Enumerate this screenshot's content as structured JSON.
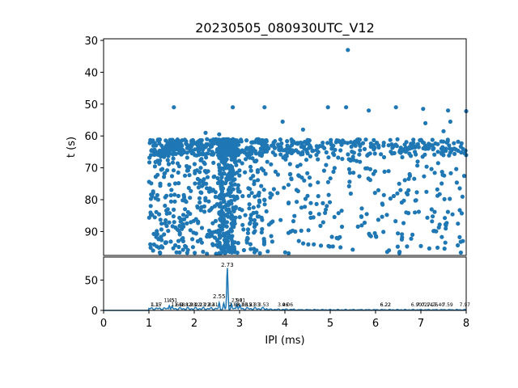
{
  "chart_data": [
    {
      "type": "scatter",
      "title": "20230505_080930UTC_V12",
      "xlabel": "",
      "ylabel": "t (s)",
      "xlim": [
        0,
        8
      ],
      "ylim": [
        97.5,
        29.5
      ],
      "y_inverted": true,
      "yticks": [
        "30",
        "40",
        "50",
        "60",
        "70",
        "80",
        "90"
      ],
      "grid": false,
      "marker_color": "#1f77b4",
      "point_count_estimate": 1500,
      "x_extent": [
        1.0,
        8.0
      ],
      "dense_band_t": [
        61,
        97
      ],
      "sparse_points": [
        {
          "x": 5.39,
          "y": 33.0
        },
        {
          "x": 1.55,
          "y": 51.0
        },
        {
          "x": 2.85,
          "y": 51.0
        },
        {
          "x": 3.55,
          "y": 51.0
        },
        {
          "x": 4.95,
          "y": 51.0
        },
        {
          "x": 5.35,
          "y": 51.0
        },
        {
          "x": 5.85,
          "y": 52.0
        },
        {
          "x": 6.45,
          "y": 51.0
        },
        {
          "x": 7.05,
          "y": 51.5
        },
        {
          "x": 7.6,
          "y": 52.0
        },
        {
          "x": 8.0,
          "y": 52.2
        },
        {
          "x": 3.95,
          "y": 55.5
        },
        {
          "x": 7.1,
          "y": 56.0
        },
        {
          "x": 7.65,
          "y": 55.5
        },
        {
          "x": 4.4,
          "y": 58.0
        },
        {
          "x": 2.25,
          "y": 59.0
        },
        {
          "x": 2.55,
          "y": 59.5
        },
        {
          "x": 7.5,
          "y": 58.5
        }
      ]
    },
    {
      "type": "line",
      "xlabel": "IPI (ms)",
      "ylabel": "",
      "xlim": [
        0,
        8
      ],
      "ylim": [
        0,
        88
      ],
      "xticks": [
        "0",
        "1",
        "2",
        "3",
        "4",
        "5",
        "6",
        "7",
        "8"
      ],
      "yticks": [
        "0",
        "50"
      ],
      "line_color": "#1f77b4",
      "peak_labels": [
        {
          "x": 2.73,
          "y": 72,
          "text": "2.73",
          "size": 7
        },
        {
          "x": 2.55,
          "y": 20,
          "text": "2.55",
          "size": 7
        },
        {
          "x": 1.15,
          "y": 7,
          "text": "1.15",
          "size": 6
        },
        {
          "x": 1.17,
          "y": 7,
          "text": "1.17",
          "size": 6
        },
        {
          "x": 1.45,
          "y": 14,
          "text": "1.45",
          "size": 6
        },
        {
          "x": 1.51,
          "y": 14,
          "text": "1.51",
          "size": 6
        },
        {
          "x": 1.61,
          "y": 7,
          "text": "1.61",
          "size": 6
        },
        {
          "x": 1.68,
          "y": 7,
          "text": "1.68",
          "size": 6
        },
        {
          "x": 1.82,
          "y": 7,
          "text": "1.82",
          "size": 6
        },
        {
          "x": 1.93,
          "y": 7,
          "text": "1.93",
          "size": 6
        },
        {
          "x": 2.02,
          "y": 7,
          "text": "2.02",
          "size": 6
        },
        {
          "x": 2.13,
          "y": 7,
          "text": "2.13",
          "size": 6
        },
        {
          "x": 2.23,
          "y": 7,
          "text": "2.23",
          "size": 6
        },
        {
          "x": 2.33,
          "y": 7,
          "text": "2.33",
          "size": 6
        },
        {
          "x": 2.41,
          "y": 7,
          "text": "2.41",
          "size": 6
        },
        {
          "x": 2.94,
          "y": 14,
          "text": "2.94",
          "size": 6
        },
        {
          "x": 3.01,
          "y": 14,
          "text": "3.01",
          "size": 6
        },
        {
          "x": 2.88,
          "y": 7,
          "text": "2.88",
          "size": 6
        },
        {
          "x": 3.06,
          "y": 7,
          "text": "3.06",
          "size": 6
        },
        {
          "x": 3.15,
          "y": 7,
          "text": "3.15",
          "size": 6
        },
        {
          "x": 3.23,
          "y": 7,
          "text": "3.23",
          "size": 6
        },
        {
          "x": 3.33,
          "y": 7,
          "text": "3.33",
          "size": 6
        },
        {
          "x": 3.53,
          "y": 7,
          "text": "3.53",
          "size": 6
        },
        {
          "x": 3.96,
          "y": 7,
          "text": "3.96",
          "size": 6
        },
        {
          "x": 4.06,
          "y": 7,
          "text": "4.06",
          "size": 6
        },
        {
          "x": 6.22,
          "y": 7,
          "text": "6.22",
          "size": 6
        },
        {
          "x": 6.22,
          "y": 7,
          "text": "6.22",
          "size": 6
        },
        {
          "x": 6.9,
          "y": 7,
          "text": "6.90",
          "size": 6
        },
        {
          "x": 7.02,
          "y": 7,
          "text": "7.02",
          "size": 6
        },
        {
          "x": 7.14,
          "y": 7,
          "text": "7.14",
          "size": 6
        },
        {
          "x": 7.26,
          "y": 7,
          "text": "7.26",
          "size": 6
        },
        {
          "x": 7.4,
          "y": 7,
          "text": "7.40",
          "size": 6
        },
        {
          "x": 7.59,
          "y": 7,
          "text": "7.59",
          "size": 6
        },
        {
          "x": 7.97,
          "y": 7,
          "text": "7.97",
          "size": 6
        }
      ],
      "peaks": [
        {
          "x": 2.73,
          "y": 70
        },
        {
          "x": 2.55,
          "y": 13
        },
        {
          "x": 2.94,
          "y": 10
        },
        {
          "x": 3.01,
          "y": 9
        },
        {
          "x": 1.45,
          "y": 8
        },
        {
          "x": 1.51,
          "y": 7
        },
        {
          "x": 2.65,
          "y": 12
        },
        {
          "x": 2.82,
          "y": 11
        }
      ]
    }
  ]
}
